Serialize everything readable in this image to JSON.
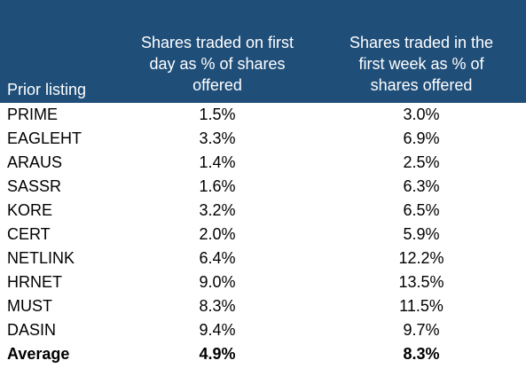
{
  "header": {
    "col0": "Prior listing",
    "col1_lines": [
      "Shares traded on first",
      "day as % of shares",
      "offered"
    ],
    "col2_lines": [
      "Shares traded in the",
      "first week as % of",
      "shares offered"
    ]
  },
  "rows": [
    {
      "name": "PRIME",
      "first_day": "1.5%",
      "first_week": "3.0%"
    },
    {
      "name": "EAGLEHT",
      "first_day": "3.3%",
      "first_week": "6.9%"
    },
    {
      "name": "ARAUS",
      "first_day": "1.4%",
      "first_week": "2.5%"
    },
    {
      "name": "SASSR",
      "first_day": "1.6%",
      "first_week": "6.3%"
    },
    {
      "name": "KORE",
      "first_day": "3.2%",
      "first_week": "6.5%"
    },
    {
      "name": "CERT",
      "first_day": "2.0%",
      "first_week": "5.9%"
    },
    {
      "name": "NETLINK",
      "first_day": "6.4%",
      "first_week": "12.2%"
    },
    {
      "name": "HRNET",
      "first_day": "9.0%",
      "first_week": "13.5%"
    },
    {
      "name": "MUST",
      "first_day": "8.3%",
      "first_week": "11.5%"
    },
    {
      "name": "DASIN",
      "first_day": "9.4%",
      "first_week": "9.7%"
    }
  ],
  "average": {
    "name": "Average",
    "first_day": "4.9%",
    "first_week": "8.3%"
  },
  "colors": {
    "header_bg": "#1f4e79",
    "header_text": "#ffffff"
  }
}
